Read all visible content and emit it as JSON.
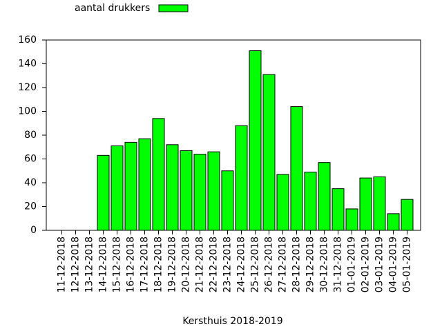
{
  "chart_data": {
    "type": "bar",
    "xlabel": "Kersthuis 2018-2019",
    "categories": [
      "11-12-2018",
      "12-12-2018",
      "13-12-2018",
      "14-12-2018",
      "15-12-2018",
      "16-12-2018",
      "17-12-2018",
      "18-12-2018",
      "19-12-2018",
      "20-12-2018",
      "21-12-2018",
      "22-12-2018",
      "23-12-2018",
      "24-12-2018",
      "25-12-2018",
      "26-12-2018",
      "27-12-2018",
      "28-12-2018",
      "29-12-2018",
      "30-12-2018",
      "31-12-2018",
      "01-01-2019",
      "02-01-2019",
      "03-01-2019",
      "04-01-2019",
      "05-01-2019"
    ],
    "series": [
      {
        "name": "aantal drukkers",
        "color": "#00ff00",
        "values": [
          0,
          0,
          0,
          63,
          71,
          74,
          77,
          94,
          72,
          67,
          64,
          66,
          50,
          88,
          151,
          131,
          47,
          104,
          49,
          57,
          35,
          18,
          44,
          45,
          14,
          26
        ]
      }
    ],
    "ylim": [
      0,
      160
    ],
    "yticks": [
      0,
      20,
      40,
      60,
      80,
      100,
      120,
      140,
      160
    ],
    "grid": false,
    "legend": "top-left"
  }
}
